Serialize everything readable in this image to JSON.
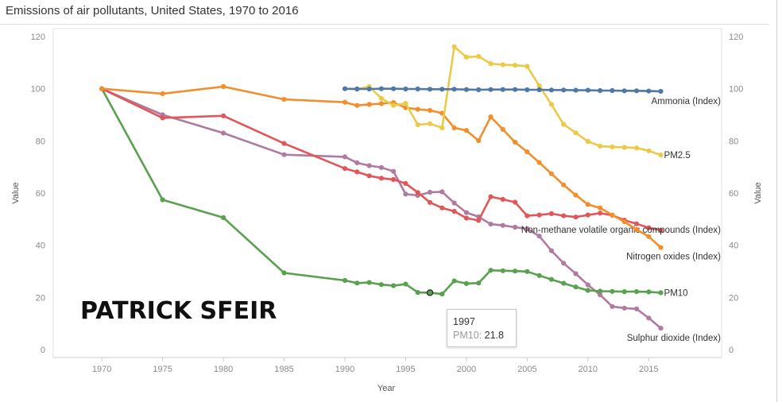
{
  "title": "Emissions of air pollutants, United States, 1970 to 2016",
  "watermark": "PATRICK SFEIR",
  "tooltip": {
    "year": "1997",
    "key": "PM10:",
    "value": "21.8"
  },
  "colors": {
    "Ammonia (Index)": "#4e79a7",
    "PM2.5": "#edc948",
    "Non-methane volatile organic compounds (Index)": "#e15759",
    "Nitrogen oxides (Index)": "#f28e2b",
    "PM10": "#59a14f",
    "Sulphur dioxide (Index)": "#b07aa1"
  },
  "chart_data": {
    "type": "line",
    "xlabel": "Year",
    "ylabel": "Value",
    "ylabel_right": "Value",
    "xlim": [
      1966,
      2021
    ],
    "ylim": [
      0,
      120
    ],
    "xticks": [
      1970,
      1975,
      1980,
      1985,
      1990,
      1995,
      2000,
      2005,
      2010,
      2015
    ],
    "yticks": [
      0,
      20,
      40,
      60,
      80,
      100,
      120
    ],
    "grid": false,
    "series": [
      {
        "name": "Sulphur dioxide (Index)",
        "x": [
          1970,
          1975,
          1980,
          1985,
          1990,
          1991,
          1992,
          1993,
          1994,
          1995,
          1996,
          1997,
          1998,
          1999,
          2000,
          2001,
          2002,
          2003,
          2004,
          2005,
          2006,
          2007,
          2008,
          2009,
          2010,
          2011,
          2012,
          2013,
          2014,
          2015,
          2016
        ],
        "values": [
          100,
          90,
          83,
          74.7,
          73.9,
          71.6,
          70.5,
          69.8,
          68.3,
          59.6,
          59.1,
          60.3,
          60.5,
          56.2,
          52.5,
          50.9,
          48.1,
          47.6,
          46.9,
          46.3,
          43.5,
          37.9,
          33.1,
          29.1,
          24.8,
          21,
          16.5,
          15.9,
          15.6,
          12.1,
          8.2
        ]
      },
      {
        "name": "PM10",
        "x": [
          1970,
          1975,
          1980,
          1985,
          1990,
          1991,
          1992,
          1993,
          1994,
          1995,
          1996,
          1997,
          1998,
          1999,
          2000,
          2001,
          2002,
          2003,
          2004,
          2005,
          2006,
          2007,
          2008,
          2009,
          2010,
          2011,
          2012,
          2013,
          2014,
          2015,
          2016
        ],
        "values": [
          100,
          57.4,
          50.6,
          29.4,
          26.5,
          25.5,
          25.7,
          24.9,
          24.5,
          25.1,
          21.9,
          21.8,
          21.3,
          26.3,
          25.3,
          25.5,
          30.4,
          30.2,
          30.1,
          29.9,
          28.4,
          26.9,
          25.4,
          24,
          22.7,
          22.4,
          22.3,
          22.2,
          22.2,
          22.1,
          21.8
        ]
      },
      {
        "name": "Non-methane volatile organic compounds (Index)",
        "x": [
          1970,
          1975,
          1980,
          1985,
          1990,
          1991,
          1992,
          1993,
          1994,
          1995,
          1996,
          1997,
          1998,
          1999,
          2000,
          2001,
          2002,
          2003,
          2004,
          2005,
          2006,
          2007,
          2008,
          2009,
          2010,
          2011,
          2012,
          2013,
          2014,
          2015,
          2016
        ],
        "values": [
          100,
          88.8,
          89.6,
          79,
          69.4,
          68.1,
          66.6,
          65.7,
          65.2,
          63.7,
          60.2,
          56.4,
          54.3,
          53,
          50.4,
          49.5,
          58.6,
          57.6,
          56.5,
          51.3,
          51.6,
          52.1,
          51.3,
          50.8,
          51.6,
          52.3,
          51.5,
          49.6,
          48.2,
          46.7,
          45.7
        ]
      },
      {
        "name": "Nitrogen oxides (Index)",
        "x": [
          1970,
          1975,
          1980,
          1985,
          1990,
          1991,
          1992,
          1993,
          1994,
          1995,
          1996,
          1997,
          1998,
          1999,
          2000,
          2001,
          2002,
          2003,
          2004,
          2005,
          2006,
          2007,
          2008,
          2009,
          2010,
          2011,
          2012,
          2013,
          2014,
          2015,
          2016
        ],
        "values": [
          100,
          98.1,
          100.8,
          95.9,
          94.8,
          93.6,
          94,
          94.3,
          94.7,
          92.7,
          92.1,
          91.7,
          90.6,
          85,
          84,
          80.1,
          89.2,
          84.4,
          79.5,
          75.8,
          71.7,
          67.4,
          63.1,
          59.2,
          55.6,
          54.3,
          51.6,
          49,
          46,
          43.3,
          39.1
        ]
      },
      {
        "name": "PM2.5",
        "x": [
          1990,
          1991,
          1992,
          1993,
          1994,
          1995,
          1996,
          1997,
          1998,
          1999,
          2000,
          2001,
          2002,
          2003,
          2004,
          2005,
          2006,
          2007,
          2008,
          2009,
          2010,
          2011,
          2012,
          2013,
          2014,
          2015,
          2016
        ],
        "values": [
          100,
          99.8,
          100.8,
          96.3,
          93.6,
          94.4,
          86.2,
          86.6,
          85,
          116.1,
          112.1,
          112.4,
          109.6,
          109.2,
          109,
          108.6,
          101.1,
          94,
          86.3,
          83.1,
          79.8,
          78,
          77.7,
          77.5,
          77.3,
          76.2,
          74.6
        ]
      },
      {
        "name": "Ammonia (Index)",
        "x": [
          1990,
          1991,
          1992,
          1993,
          1994,
          1995,
          1996,
          1997,
          1998,
          1999,
          2000,
          2001,
          2002,
          2003,
          2004,
          2005,
          2006,
          2007,
          2008,
          2009,
          2010,
          2011,
          2012,
          2013,
          2014,
          2015,
          2016
        ],
        "values": [
          100,
          99.9,
          99.9,
          100,
          100,
          99.9,
          99.9,
          99.8,
          99.8,
          99.8,
          99.7,
          99.6,
          99.7,
          99.7,
          99.7,
          99.6,
          99.6,
          99.5,
          99.5,
          99.4,
          99.4,
          99.3,
          99.3,
          99.2,
          99.2,
          99.1,
          99
        ]
      }
    ]
  }
}
